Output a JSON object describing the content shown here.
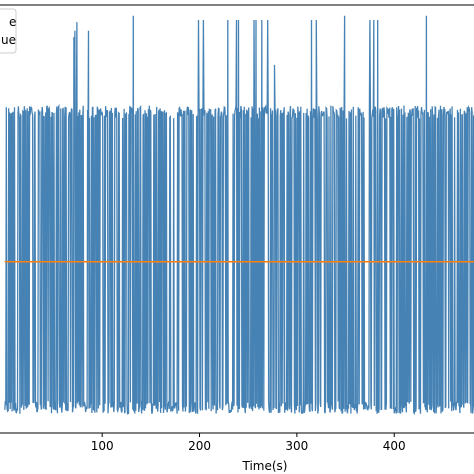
{
  "chart_data": {
    "type": "line",
    "xlabel": "Time(s)",
    "ylabel": "",
    "xlim": [
      -7,
      484
    ],
    "ylim": [
      -1.0,
      1.0
    ],
    "xticks": [
      100,
      200,
      300,
      400
    ],
    "grid": false,
    "legend": {
      "placement": "top-left",
      "entries": [
        {
          "label_fragment": "e",
          "color": "#4682b4"
        },
        {
          "label_fragment": "ue",
          "color": "#ff7f0e"
        }
      ]
    },
    "series": [
      {
        "color": "#4682b4",
        "description_points": {
          "x_range": [
            0,
            484
          ],
          "low_band": -0.88,
          "high_band": 0.5,
          "spikes": [
            {
              "x": 71,
              "y": 0.85
            },
            {
              "x": 72,
              "y": 0.88
            },
            {
              "x": 74,
              "y": 0.92
            },
            {
              "x": 86,
              "y": 0.88
            },
            {
              "x": 132,
              "y": 0.95
            },
            {
              "x": 199,
              "y": 0.93
            },
            {
              "x": 204,
              "y": 0.93
            },
            {
              "x": 229,
              "y": 0.93
            },
            {
              "x": 256,
              "y": 0.93
            },
            {
              "x": 258,
              "y": 0.93
            },
            {
              "x": 264,
              "y": 0.93
            },
            {
              "x": 270,
              "y": 0.93
            },
            {
              "x": 277,
              "y": 0.72
            },
            {
              "x": 315,
              "y": 0.93
            },
            {
              "x": 320,
              "y": 0.93
            },
            {
              "x": 349,
              "y": 0.95
            },
            {
              "x": 375,
              "y": 0.93
            },
            {
              "x": 379,
              "y": 0.93
            },
            {
              "x": 383,
              "y": 0.93
            },
            {
              "x": 433,
              "y": 0.95
            },
            {
              "x": 238,
              "y": 0.93
            },
            {
              "x": 240,
              "y": 0.93
            }
          ]
        }
      },
      {
        "color": "#ff7f0e",
        "values_constant": -0.2
      }
    ]
  }
}
